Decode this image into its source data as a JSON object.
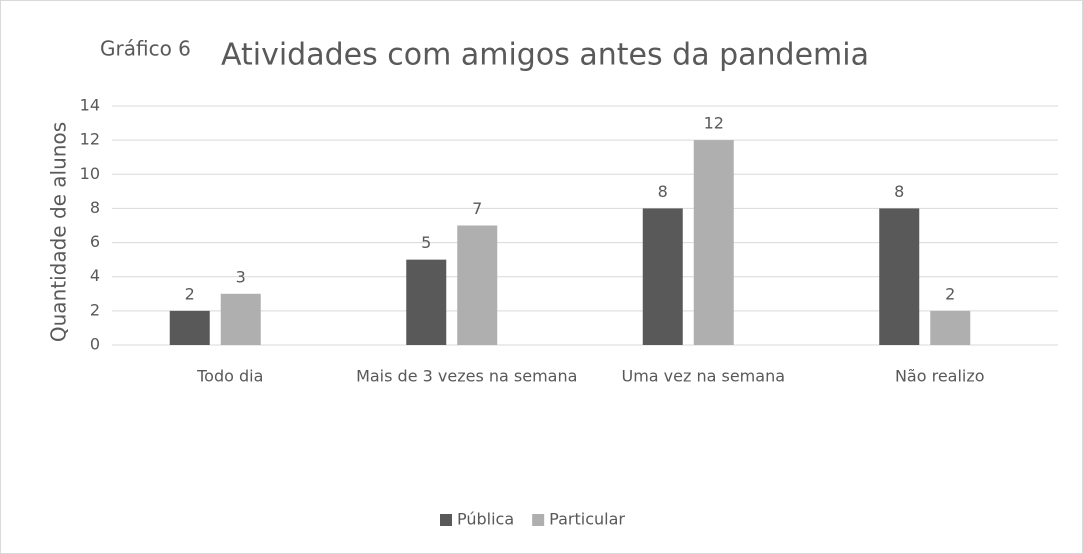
{
  "chart_data": {
    "type": "bar",
    "annotation": "Gráfico 6",
    "title": "Atividades com amigos antes da pandemia",
    "y_label": "Quantidade de alunos",
    "categories": [
      "Todo dia",
      "Mais de 3 vezes na semana",
      "Uma vez na semana",
      "Não realizo"
    ],
    "series": [
      {
        "name": "Pública",
        "color": "#595959",
        "values": [
          2,
          5,
          8,
          8
        ]
      },
      {
        "name": "Particular",
        "color": "#afafaf",
        "values": [
          3,
          7,
          12,
          2
        ]
      }
    ],
    "ylim": [
      0,
      14
    ],
    "yticks": [
      0,
      2,
      4,
      6,
      8,
      10,
      12,
      14
    ],
    "grid": true,
    "legend": "bottom"
  }
}
